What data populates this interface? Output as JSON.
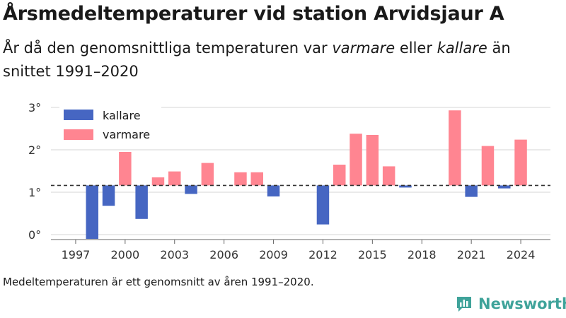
{
  "title": "Årsmedeltemperaturer vid station Arvidsjaur A",
  "subtitle": {
    "part1": "År då den genomsnittliga temperaturen var ",
    "em1": "varmare",
    "part2": " eller ",
    "em2": "kallare",
    "part3": " än snittet 1991–2020"
  },
  "footnote": "Medeltemperaturen är ett genomsnitt av åren 1991–2020.",
  "brand": "Newsworthy",
  "colors": {
    "kallare": "#4666c2",
    "varmare": "#ff8591",
    "baseline": "#333333",
    "grid": "#dddddd",
    "brand": "#3fa39a"
  },
  "chart_data": {
    "type": "bar",
    "baseline": 1.16,
    "ylim": [
      -0.1,
      3.2
    ],
    "yticks": [
      0,
      1,
      2,
      3
    ],
    "ytick_labels": [
      "0°",
      "1°",
      "2°",
      "3°"
    ],
    "xlim": [
      1995.5,
      2025.8
    ],
    "xticks": [
      1997,
      2000,
      2003,
      2006,
      2009,
      2012,
      2015,
      2018,
      2021,
      2024
    ],
    "xtick_labels": [
      "1997",
      "2000",
      "2003",
      "2006",
      "2009",
      "2012",
      "2015",
      "2018",
      "2021",
      "2024"
    ],
    "legend": {
      "position": "top-left",
      "items": [
        "kallare",
        "varmare"
      ]
    },
    "grid": true,
    "years": [
      1998,
      1999,
      2000,
      2001,
      2002,
      2003,
      2004,
      2005,
      2007,
      2008,
      2009,
      2012,
      2013,
      2014,
      2015,
      2016,
      2017,
      2020,
      2021,
      2022,
      2023,
      2024
    ],
    "values": [
      -0.1,
      0.68,
      1.95,
      0.37,
      1.35,
      1.49,
      0.96,
      1.69,
      1.47,
      1.47,
      0.9,
      0.24,
      1.65,
      2.38,
      2.35,
      1.61,
      1.11,
      2.93,
      0.89,
      2.09,
      1.09,
      2.24
    ]
  }
}
